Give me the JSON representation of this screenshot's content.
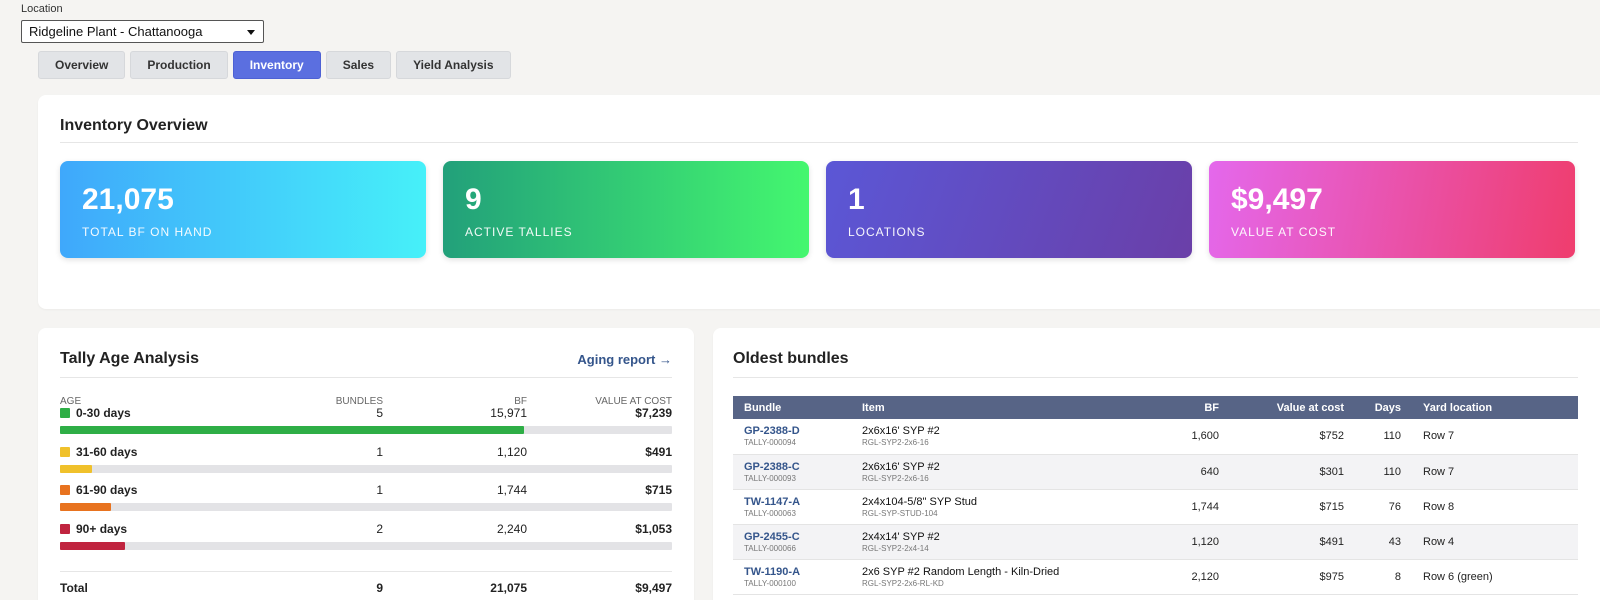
{
  "location": {
    "label": "Location",
    "selected": "Ridgeline Plant - Chattanooga"
  },
  "tabs": [
    {
      "label": "Overview",
      "active": false
    },
    {
      "label": "Production",
      "active": false
    },
    {
      "label": "Inventory",
      "active": true
    },
    {
      "label": "Sales",
      "active": false
    },
    {
      "label": "Yield Analysis",
      "active": false
    }
  ],
  "overview": {
    "title": "Inventory Overview",
    "kpis": [
      {
        "value": "21,075",
        "label": "TOTAL BF ON HAND"
      },
      {
        "value": "9",
        "label": "ACTIVE TALLIES"
      },
      {
        "value": "1",
        "label": "LOCATIONS"
      },
      {
        "value": "$9,497",
        "label": "VALUE AT COST"
      }
    ]
  },
  "tally": {
    "title": "Tally Age Analysis",
    "link": "Aging report →",
    "headers": {
      "age": "AGE",
      "bundles": "BUNDLES",
      "bf": "BF",
      "value": "VALUE AT COST"
    },
    "rows": [
      {
        "age": "0-30 days",
        "bundles": "5",
        "bf": "15,971",
        "value": "$7,239",
        "color": "#2eae46",
        "share": 0.758
      },
      {
        "age": "31-60 days",
        "bundles": "1",
        "bf": "1,120",
        "value": "$491",
        "color": "#f0c12b",
        "share": 0.053
      },
      {
        "age": "61-90 days",
        "bundles": "1",
        "bf": "1,744",
        "value": "$715",
        "color": "#e8731f",
        "share": 0.083
      },
      {
        "age": "90+ days",
        "bundles": "2",
        "bf": "2,240",
        "value": "$1,053",
        "color": "#c0243f",
        "share": 0.106
      }
    ],
    "total": {
      "label": "Total",
      "bundles": "9",
      "bf": "21,075",
      "value": "$9,497"
    }
  },
  "bundles": {
    "title": "Oldest bundles",
    "headers": {
      "bundle": "Bundle",
      "item": "Item",
      "bf": "BF",
      "value": "Value at cost",
      "days": "Days",
      "yard": "Yard location"
    },
    "rows": [
      {
        "code": "GP-2388-D",
        "tally": "TALLY-000094",
        "item": "2x6x16' SYP #2",
        "sku": "RGL-SYP2-2x6-16",
        "bf": "1,600",
        "value": "$752",
        "days": "110",
        "yard": "Row 7"
      },
      {
        "code": "GP-2388-C",
        "tally": "TALLY-000093",
        "item": "2x6x16' SYP #2",
        "sku": "RGL-SYP2-2x6-16",
        "bf": "640",
        "value": "$301",
        "days": "110",
        "yard": "Row 7"
      },
      {
        "code": "TW-1147-A",
        "tally": "TALLY-000063",
        "item": "2x4x104-5/8\" SYP Stud",
        "sku": "RGL-SYP-STUD-104",
        "bf": "1,744",
        "value": "$715",
        "days": "76",
        "yard": "Row 8"
      },
      {
        "code": "GP-2455-C",
        "tally": "TALLY-000066",
        "item": "2x4x14' SYP #2",
        "sku": "RGL-SYP2-2x4-14",
        "bf": "1,120",
        "value": "$491",
        "days": "43",
        "yard": "Row 4"
      },
      {
        "code": "TW-1190-A",
        "tally": "TALLY-000100",
        "item": "2x6 SYP #2 Random Length - Kiln-Dried",
        "sku": "RGL-SYP2-2x6-RL-KD",
        "bf": "2,120",
        "value": "$975",
        "days": "8",
        "yard": "Row 6 (green)"
      }
    ]
  }
}
